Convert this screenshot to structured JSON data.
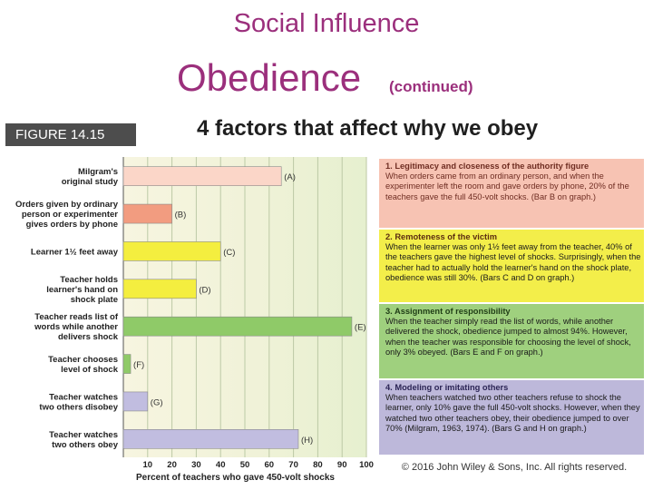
{
  "slide": {
    "header": "Social Influence",
    "title": "Obedience",
    "title_note": "(continued)",
    "figure_label": "FIGURE  14.15",
    "subtitle": "4 factors that affect why we obey",
    "copyright": "© 2016 John Wiley & Sons, Inc. All rights reserved."
  },
  "chart_data": {
    "type": "bar",
    "orientation": "horizontal",
    "title": "",
    "xlabel": "Percent of teachers who gave 450-volt shocks",
    "ylabel": "",
    "xlim": [
      0,
      100
    ],
    "xticks": [
      10,
      20,
      30,
      40,
      50,
      60,
      70,
      80,
      90,
      100
    ],
    "grid": true,
    "categories": [
      {
        "lines": [
          "Milgram's",
          "original study"
        ],
        "label": "(A)",
        "value": 65,
        "color": "#fbd6c8"
      },
      {
        "lines": [
          "Orders given by ordinary",
          "person or experimenter",
          "gives orders by phone"
        ],
        "label": "(B)",
        "value": 20,
        "color": "#f29c80"
      },
      {
        "lines": [
          "Learner 1½ feet away"
        ],
        "label": "(C)",
        "value": 40,
        "color": "#f4ee3f"
      },
      {
        "lines": [
          "Teacher holds",
          "learner's hand on",
          "shock plate"
        ],
        "label": "(D)",
        "value": 30,
        "color": "#f4ee3f"
      },
      {
        "lines": [
          "Teacher reads list of",
          "words while another",
          "delivers shock"
        ],
        "label": "(E)",
        "value": 94,
        "color": "#8fca68"
      },
      {
        "lines": [
          "Teacher chooses",
          "level of shock"
        ],
        "label": "(F)",
        "value": 3,
        "color": "#8fca68"
      },
      {
        "lines": [
          "Teacher watches",
          "two others disobey"
        ],
        "label": "(G)",
        "value": 10,
        "color": "#c1bde0"
      },
      {
        "lines": [
          "Teacher watches",
          "two others obey"
        ],
        "label": "(H)",
        "value": 72,
        "color": "#c1bde0"
      }
    ]
  },
  "factors": [
    {
      "title": "1. Legitimacy and closeness of the authority figure",
      "body": "When orders came from an ordinary person, and when the experimenter left the room and gave orders by phone, 20% of the teachers gave the full 450-volt shocks. (Bar B on graph.)"
    },
    {
      "title": "2. Remoteness of the victim",
      "body": "When the learner was only 1½ feet away from the teacher, 40% of the teachers gave the highest level of shocks. Surprisingly, when the teacher had to actually hold the learner's hand on the shock plate, obedience was still 30%. (Bars C and D on graph.)"
    },
    {
      "title": "3. Assignment of responsibility",
      "body": "When the teacher simply read the list of words, while another delivered the shock, obedience jumped to almost 94%. However, when the teacher was responsible for choosing the level of shock, only 3% obeyed. (Bars E and F on graph.)"
    },
    {
      "title": "4. Modeling or imitating others",
      "body": "When teachers watched two other teachers refuse to shock the learner, only 10% gave the full 450-volt shocks. However, when they watched two other teachers obey, their obedience jumped to over 70% (Milgram, 1963, 1974). (Bars G and H on graph.)"
    }
  ]
}
